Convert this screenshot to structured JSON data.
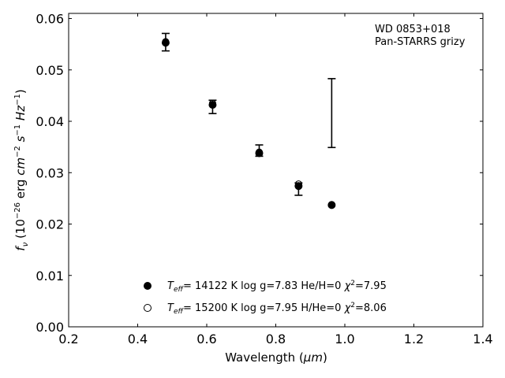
{
  "chart_data": {
    "type": "scatter",
    "xlabel_prefix": "Wavelength (",
    "xlabel_unit": "μm",
    "xlabel_suffix": ")",
    "ylabel": "f_ν (10^-26 erg cm^-2 s^-1 Hz^-1)",
    "xlim": [
      0.2,
      1.4
    ],
    "ylim": [
      0.0,
      0.061
    ],
    "xticks": [
      0.2,
      0.4,
      0.6,
      0.8,
      1.0,
      1.2,
      1.4
    ],
    "xtick_labels": [
      "0.2",
      "0.4",
      "0.6",
      "0.8",
      "1.0",
      "1.2",
      "1.4"
    ],
    "yticks": [
      0.0,
      0.01,
      0.02,
      0.03,
      0.04,
      0.05,
      0.06
    ],
    "ytick_labels": [
      "0.00",
      "0.01",
      "0.02",
      "0.03",
      "0.04",
      "0.05",
      "0.06"
    ],
    "grid": false,
    "annotation": [
      "WD 0853+018",
      "Pan-STARRS grizy"
    ],
    "observed": {
      "x": [
        0.481,
        0.617,
        0.752,
        0.866,
        0.962
      ],
      "y": [
        0.0554,
        0.0428,
        0.0343,
        0.0268,
        0.0416
      ],
      "yerr": [
        0.0017,
        0.0013,
        0.0011,
        0.0012,
        0.0067
      ]
    },
    "series": [
      {
        "name": "T_eff= 14122 K  log g=7.83  He/H=0  χ²=7.95",
        "marker": "filled-circle",
        "x": [
          0.481,
          0.617,
          0.752,
          0.866,
          0.962
        ],
        "y": [
          0.0553,
          0.0432,
          0.0338,
          0.0274,
          0.0237
        ]
      },
      {
        "name": "T_eff= 15200 K  log g=7.95  H/He=0  χ²=8.06",
        "marker": "open-circle",
        "x": [
          0.481,
          0.617,
          0.752,
          0.866,
          0.962
        ],
        "y": [
          0.0555,
          0.0435,
          0.034,
          0.0278,
          0.0238
        ]
      }
    ],
    "legend_location": "lower-center"
  },
  "colors": {
    "marker": "#000000",
    "axes": "#000000",
    "background": "#ffffff"
  }
}
